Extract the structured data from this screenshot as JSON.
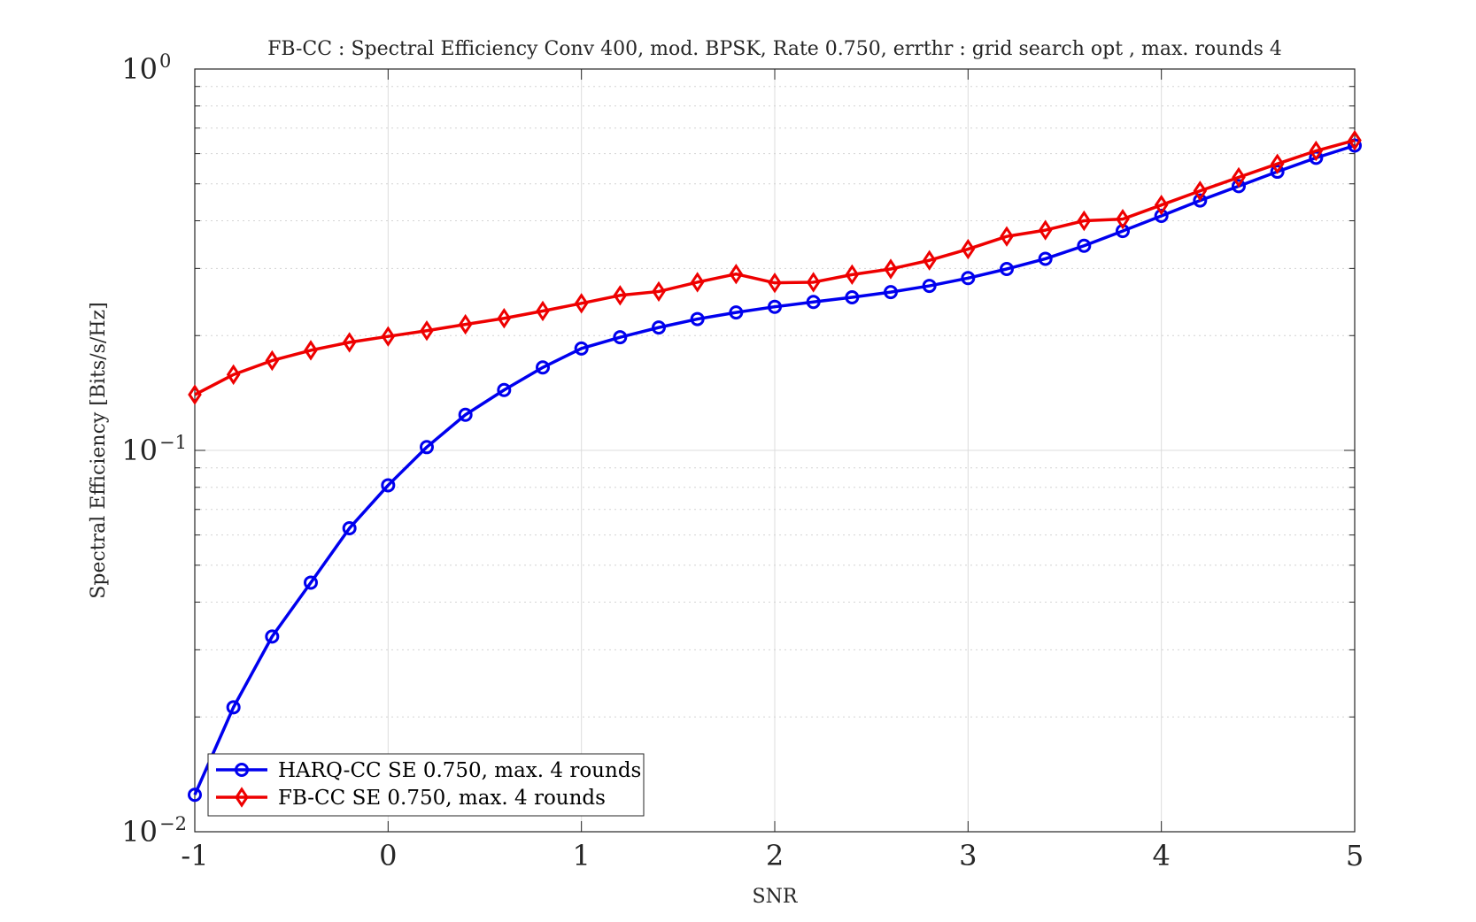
{
  "chart_data": {
    "type": "line",
    "title": "FB-CC : Spectral Efficiency Conv 400, mod. BPSK, Rate 0.750, errthr : grid search opt , max. rounds 4",
    "xlabel": "SNR",
    "ylabel": "Spectral Efficiency [Bits/s/Hz]",
    "xlim": [
      -1,
      5
    ],
    "ylim": [
      0.01,
      1
    ],
    "yscale": "log",
    "grid": true,
    "legend_position": "bottom-left",
    "x_ticks": [
      "-1",
      "0",
      "1",
      "2",
      "3",
      "4",
      "5"
    ],
    "y_ticks": [
      {
        "base": "10",
        "exp": "0"
      },
      {
        "base": "10",
        "exp": "−1"
      },
      {
        "base": "10",
        "exp": "−2"
      }
    ],
    "x": [
      -1,
      -0.8,
      -0.6,
      -0.4,
      -0.2,
      0,
      0.2,
      0.4,
      0.6,
      0.8,
      1,
      1.2,
      1.4,
      1.6,
      1.8,
      2,
      2.2,
      2.4,
      2.6,
      2.8,
      3,
      3.2,
      3.4,
      3.6,
      3.8,
      4,
      4.2,
      4.4,
      4.6,
      4.8,
      5
    ],
    "series": [
      {
        "name": "HARQ-CC SE 0.750, max. 4 rounds",
        "color": "#0000ee",
        "marker": "circle",
        "values": [
          0.0125,
          0.0212,
          0.0325,
          0.045,
          0.0625,
          0.081,
          0.102,
          0.124,
          0.144,
          0.165,
          0.185,
          0.198,
          0.21,
          0.221,
          0.23,
          0.238,
          0.245,
          0.252,
          0.26,
          0.27,
          0.283,
          0.299,
          0.318,
          0.344,
          0.376,
          0.412,
          0.452,
          0.493,
          0.538,
          0.585,
          0.63
        ]
      },
      {
        "name": "FB-CC SE 0.750, max. 4 rounds",
        "color": "#ee0000",
        "marker": "diamond",
        "values": [
          0.14,
          0.158,
          0.172,
          0.183,
          0.192,
          0.199,
          0.206,
          0.214,
          0.222,
          0.232,
          0.243,
          0.255,
          0.261,
          0.276,
          0.29,
          0.275,
          0.276,
          0.289,
          0.299,
          0.315,
          0.337,
          0.364,
          0.378,
          0.4,
          0.404,
          0.44,
          0.479,
          0.52,
          0.564,
          0.61,
          0.65
        ]
      }
    ]
  }
}
